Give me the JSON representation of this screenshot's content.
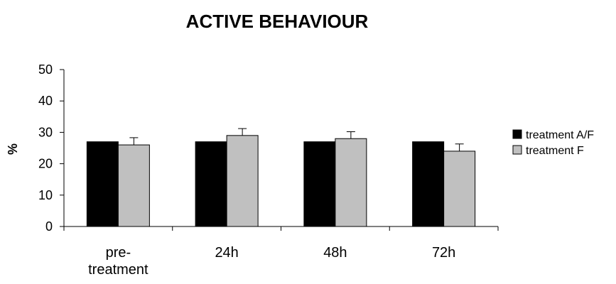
{
  "chart_data": {
    "type": "bar",
    "title": "ACTIVE BEHAVIOUR",
    "xlabel": "",
    "ylabel": "%",
    "ylim": [
      0,
      50
    ],
    "yticks": [
      0,
      10,
      20,
      30,
      40,
      50
    ],
    "categories": [
      [
        "pre-",
        "treatment"
      ],
      [
        "24h"
      ],
      [
        "48h"
      ],
      [
        "72h"
      ]
    ],
    "series": [
      {
        "name": "treatment A/F",
        "color": "#000000",
        "values": [
          27,
          27,
          27,
          27
        ],
        "errors": [
          0,
          0,
          0,
          0
        ]
      },
      {
        "name": "treatment F",
        "color": "#c0c0c0",
        "values": [
          26,
          29,
          28,
          24
        ],
        "errors": [
          2.3,
          2.2,
          2.2,
          2.3
        ]
      }
    ],
    "grid": false,
    "legend": "right"
  }
}
